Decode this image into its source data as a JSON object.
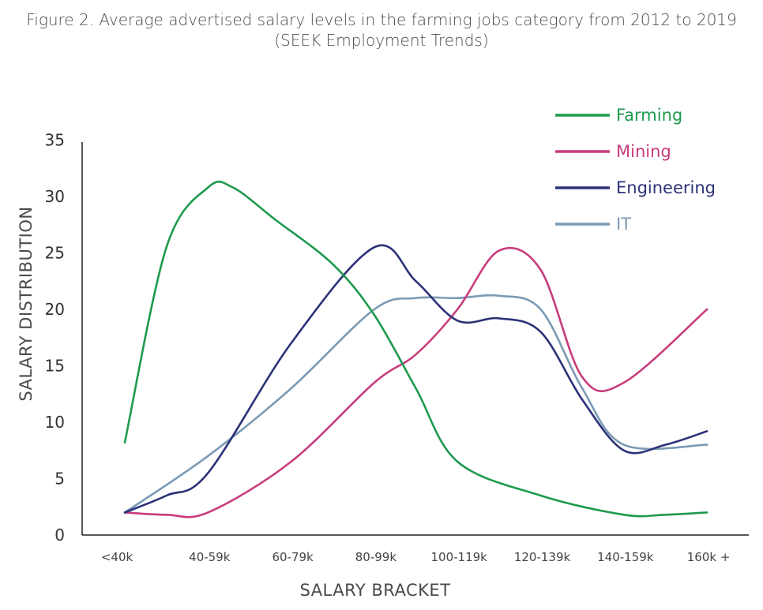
{
  "title": {
    "line1": "Figure 2. Average advertised salary levels in the farming jobs category from 2012 to 2019",
    "line2": "(SEEK  Employment Trends)"
  },
  "chart_data": {
    "type": "line",
    "xlabel": "SALARY BRACKET",
    "ylabel": "SALARY DISTRIBUTION",
    "ylim": [
      0,
      35
    ],
    "yticks": [
      0,
      5,
      10,
      15,
      20,
      25,
      30,
      35
    ],
    "categories": [
      "<40k",
      "40-59k",
      "60-79k",
      "80-99k",
      "100-119k",
      "120-139k",
      "140-159k",
      "160k +"
    ],
    "legend_position": "top-right",
    "series": [
      {
        "name": "Farming",
        "color": "#1f9a4e",
        "points": [
          [
            0,
            8.2
          ],
          [
            0.5,
            25.5
          ],
          [
            1,
            30.8
          ],
          [
            1.3,
            30.8
          ],
          [
            1.8,
            28
          ],
          [
            2.5,
            24
          ],
          [
            3,
            19.5
          ],
          [
            3.5,
            13
          ],
          [
            4,
            6.5
          ],
          [
            5,
            3.5
          ],
          [
            6,
            1.8
          ],
          [
            6.5,
            1.8
          ],
          [
            7,
            2
          ]
        ]
      },
      {
        "name": "Mining",
        "color": "#c83c7c",
        "points": [
          [
            0,
            2
          ],
          [
            0.5,
            1.8
          ],
          [
            1,
            2
          ],
          [
            2,
            6.5
          ],
          [
            3,
            13.5
          ],
          [
            3.5,
            16
          ],
          [
            4,
            20
          ],
          [
            4.5,
            25.2
          ],
          [
            5,
            23.5
          ],
          [
            5.5,
            14
          ],
          [
            6,
            13.5
          ],
          [
            7,
            20
          ]
        ]
      },
      {
        "name": "Engineering",
        "color": "#2c3278",
        "points": [
          [
            0,
            2
          ],
          [
            0.5,
            3.5
          ],
          [
            1,
            5.5
          ],
          [
            2,
            17
          ],
          [
            3,
            25.5
          ],
          [
            3.5,
            22.5
          ],
          [
            4,
            19
          ],
          [
            4.5,
            19.2
          ],
          [
            5,
            18
          ],
          [
            5.5,
            12
          ],
          [
            6,
            7.5
          ],
          [
            6.5,
            8
          ],
          [
            7,
            9.2
          ]
        ]
      },
      {
        "name": "IT",
        "color": "#7b9ab4",
        "points": [
          [
            0,
            2
          ],
          [
            1,
            7
          ],
          [
            2,
            13
          ],
          [
            3,
            20
          ],
          [
            3.5,
            21
          ],
          [
            4,
            21
          ],
          [
            4.5,
            21.2
          ],
          [
            5,
            20
          ],
          [
            5.5,
            13
          ],
          [
            6,
            8
          ],
          [
            7,
            8
          ]
        ]
      }
    ]
  }
}
